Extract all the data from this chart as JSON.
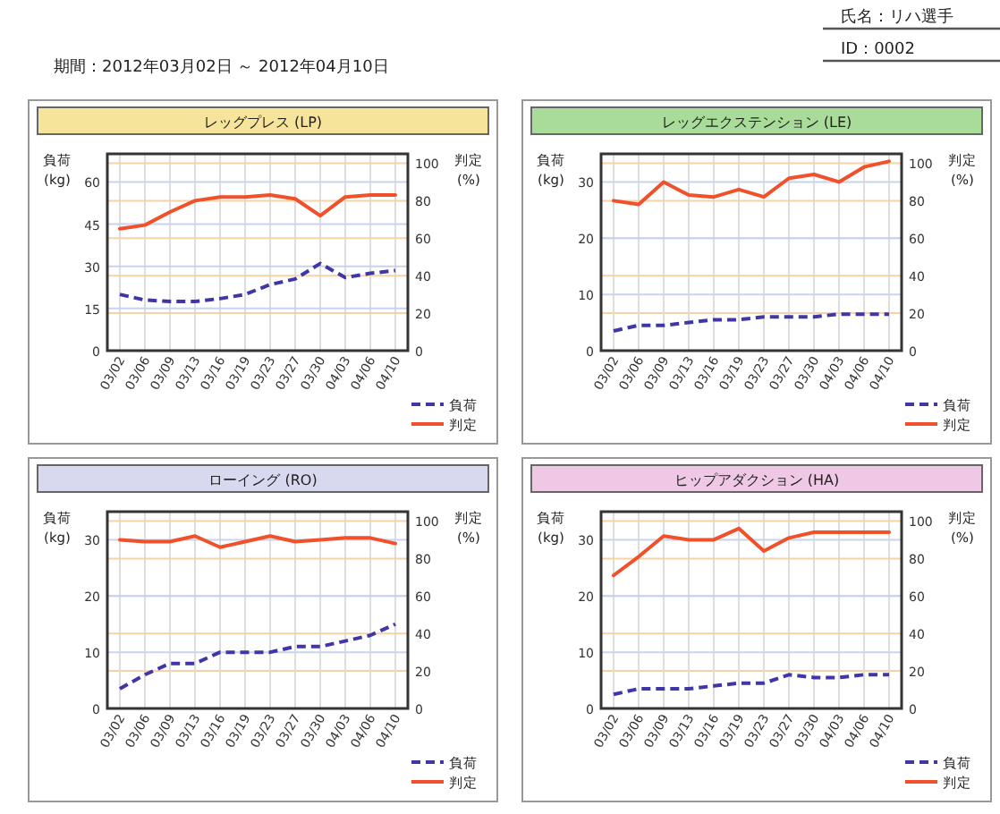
{
  "chart_data": [
    {
      "type": "line",
      "title": "レッグプレス (LP)",
      "annotations": [
        "期間：2012年03月02日 ～ 2012年04月10日",
        "氏名：リハ選手",
        "ID：0002"
      ],
      "ylabel": "負荷\n(kg)",
      "y2label": "判定\n(%)",
      "categories": [
        "03/02",
        "03/06",
        "03/09",
        "03/13",
        "03/16",
        "03/19",
        "03/23",
        "03/27",
        "03/30",
        "04/03",
        "04/06",
        "04/10"
      ],
      "ylim": [
        0,
        70
      ],
      "yticks": [
        0,
        15,
        30,
        45,
        60
      ],
      "y2lim": [
        0,
        105
      ],
      "y2ticks": [
        0,
        20,
        40,
        60,
        80,
        100
      ],
      "grid": true,
      "legend": "bottom right",
      "series": [
        {
          "name": "負荷",
          "color": "#3f36a8",
          "line_style": "dashed",
          "values": [
            20,
            18,
            17.5,
            17.5,
            18.5,
            20,
            23.5,
            25.5,
            31,
            26,
            27.5,
            28.5
          ]
        },
        {
          "name": "判定",
          "color": "#f0502a",
          "line_style": "solid",
          "axis": "y2",
          "values": [
            65,
            67,
            74,
            80,
            82,
            82,
            83,
            81,
            72,
            82,
            83,
            83
          ]
        }
      ]
    },
    {
      "type": "line",
      "title": "レッグエクステンション (LE)",
      "ylabel": "負荷\n(kg)",
      "y2label": "判定\n(%)",
      "categories": [
        "03/02",
        "03/06",
        "03/09",
        "03/13",
        "03/16",
        "03/19",
        "03/23",
        "03/27",
        "03/30",
        "04/03",
        "04/06",
        "04/10"
      ],
      "ylim": [
        0,
        35
      ],
      "yticks": [
        0,
        10,
        20,
        30
      ],
      "y2lim": [
        0,
        105
      ],
      "y2ticks": [
        0,
        20,
        40,
        60,
        80,
        100
      ],
      "grid": true,
      "legend": "bottom right",
      "series": [
        {
          "name": "負荷",
          "color": "#3f36a8",
          "line_style": "dashed",
          "values": [
            3.5,
            4.5,
            4.5,
            5,
            5.5,
            5.5,
            6,
            6,
            6,
            6.5,
            6.5,
            6.5
          ]
        },
        {
          "name": "判定",
          "color": "#f0502a",
          "line_style": "solid",
          "axis": "y2",
          "values": [
            80,
            78,
            90,
            83,
            82,
            86,
            82,
            92,
            94,
            90,
            98,
            101
          ]
        }
      ]
    },
    {
      "type": "line",
      "title": "ローイング (RO)",
      "ylabel": "負荷\n(kg)",
      "y2label": "判定\n(%)",
      "categories": [
        "03/02",
        "03/06",
        "03/09",
        "03/13",
        "03/16",
        "03/19",
        "03/23",
        "03/27",
        "03/30",
        "04/03",
        "04/06",
        "04/10"
      ],
      "ylim": [
        0,
        35
      ],
      "yticks": [
        0,
        10,
        20,
        30
      ],
      "y2lim": [
        0,
        105
      ],
      "y2ticks": [
        0,
        20,
        40,
        60,
        80,
        100
      ],
      "grid": true,
      "legend": "bottom right",
      "series": [
        {
          "name": "負荷",
          "color": "#3f36a8",
          "line_style": "dashed",
          "values": [
            3.5,
            6,
            8,
            8,
            10,
            10,
            10,
            11,
            11,
            12,
            13,
            15
          ]
        },
        {
          "name": "判定",
          "color": "#f0502a",
          "line_style": "solid",
          "axis": "y2",
          "values": [
            90,
            89,
            89,
            92,
            86,
            89,
            92,
            89,
            90,
            91,
            91,
            88
          ]
        }
      ]
    },
    {
      "type": "line",
      "title": "ヒップアダクション (HA)",
      "ylabel": "負荷\n(kg)",
      "y2label": "判定\n(%)",
      "categories": [
        "03/02",
        "03/06",
        "03/09",
        "03/13",
        "03/16",
        "03/19",
        "03/23",
        "03/27",
        "03/30",
        "04/03",
        "04/06",
        "04/10"
      ],
      "ylim": [
        0,
        35
      ],
      "yticks": [
        0,
        10,
        20,
        30
      ],
      "y2lim": [
        0,
        105
      ],
      "y2ticks": [
        0,
        20,
        40,
        60,
        80,
        100
      ],
      "grid": true,
      "legend": "bottom right",
      "series": [
        {
          "name": "負荷",
          "color": "#3f36a8",
          "line_style": "dashed",
          "values": [
            2.5,
            3.5,
            3.5,
            3.5,
            4,
            4.5,
            4.5,
            6,
            5.5,
            5.5,
            6,
            6
          ]
        },
        {
          "name": "判定",
          "color": "#f0502a",
          "line_style": "solid",
          "axis": "y2",
          "values": [
            71,
            81,
            92,
            90,
            90,
            96,
            84,
            91,
            94,
            94,
            94,
            94
          ]
        }
      ]
    }
  ]
}
